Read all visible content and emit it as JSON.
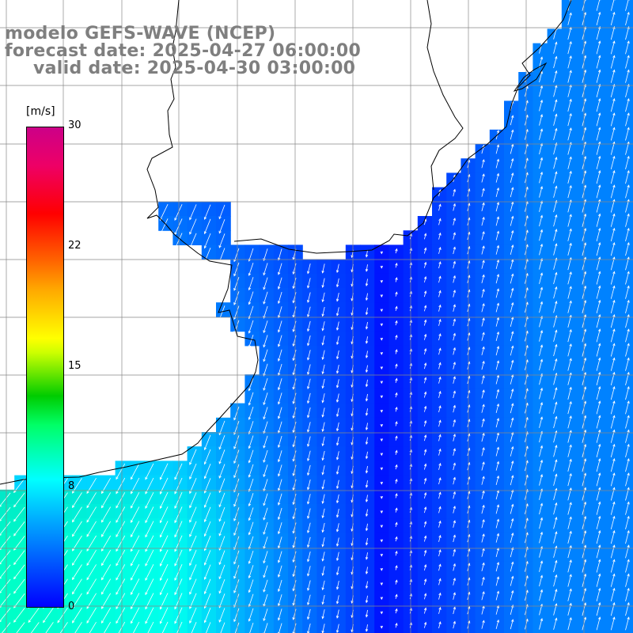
{
  "header": {
    "line1": "modelo GEFS-WAVE (NCEP)",
    "line2": "forecast date: 2025-04-27 06:00:00",
    "line3": "valid date: 2025-04-30 03:00:00"
  },
  "colorbar": {
    "unit": "[m/s]",
    "ticks": [
      "30",
      "22",
      "15",
      "8",
      "0"
    ],
    "tick_values": [
      30,
      22,
      15,
      8,
      0
    ],
    "min": 0,
    "max": 30
  },
  "colors": {
    "land": "#ffffff",
    "coast": "#000000",
    "grid": "#888888",
    "arrows": "#ffffff",
    "title": "#7f7f7f"
  }
}
